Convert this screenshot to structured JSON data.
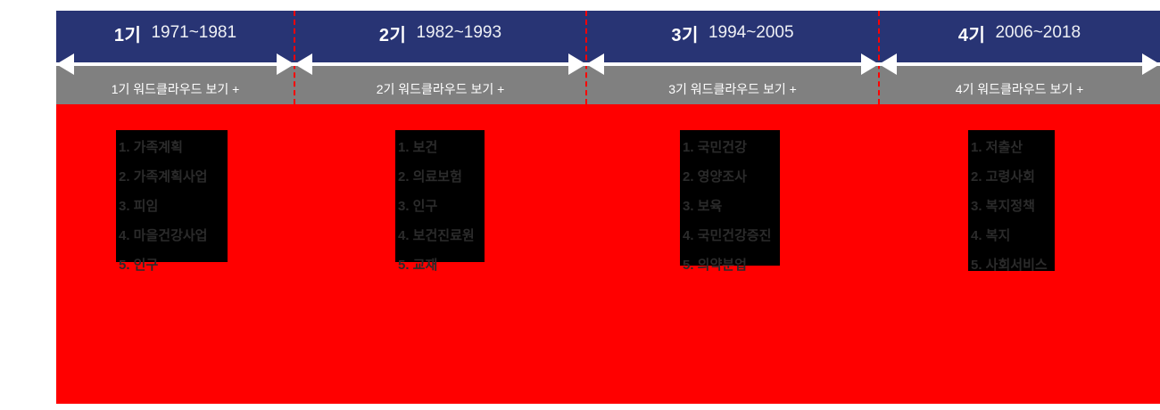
{
  "colors": {
    "header_navy": "#283474",
    "wordcloud_bar_gray": "#808080",
    "content_red": "#ff0000",
    "keyword_box_black": "#000000",
    "keyword_text": "#2b2b2b",
    "arrow_white": "#ffffff",
    "divider_dashed_red": "#ff0000"
  },
  "timeline": {
    "periods": [
      {
        "label": "1기",
        "range": "1971~1981",
        "wordcloud_button": "1기 워드클라우드 보기 +",
        "top_keywords": [
          "1. 가족계획",
          "2. 가족계획사업",
          "3. 피임",
          "4. 마을건강사업",
          "5. 인구"
        ]
      },
      {
        "label": "2기",
        "range": "1982~1993",
        "wordcloud_button": "2기 워드클라우드 보기 +",
        "top_keywords": [
          "1. 보건",
          "2. 의료보험",
          "3. 인구",
          "4. 보건진료원",
          "5. 교재"
        ]
      },
      {
        "label": "3기",
        "range": "1994~2005",
        "wordcloud_button": "3기 워드클라우드 보기 +",
        "top_keywords": [
          "1. 국민건강",
          "2. 영양조사",
          "3. 보육",
          "4. 국민건강증진",
          "5. 의약분업"
        ]
      },
      {
        "label": "4기",
        "range": "2006~2018",
        "wordcloud_button": "4기 워드클라우드 보기 +",
        "top_keywords": [
          "1. 저출산",
          "2. 고령사회",
          "3. 복지정책",
          "4. 복지",
          "5. 사회서비스"
        ]
      }
    ]
  }
}
